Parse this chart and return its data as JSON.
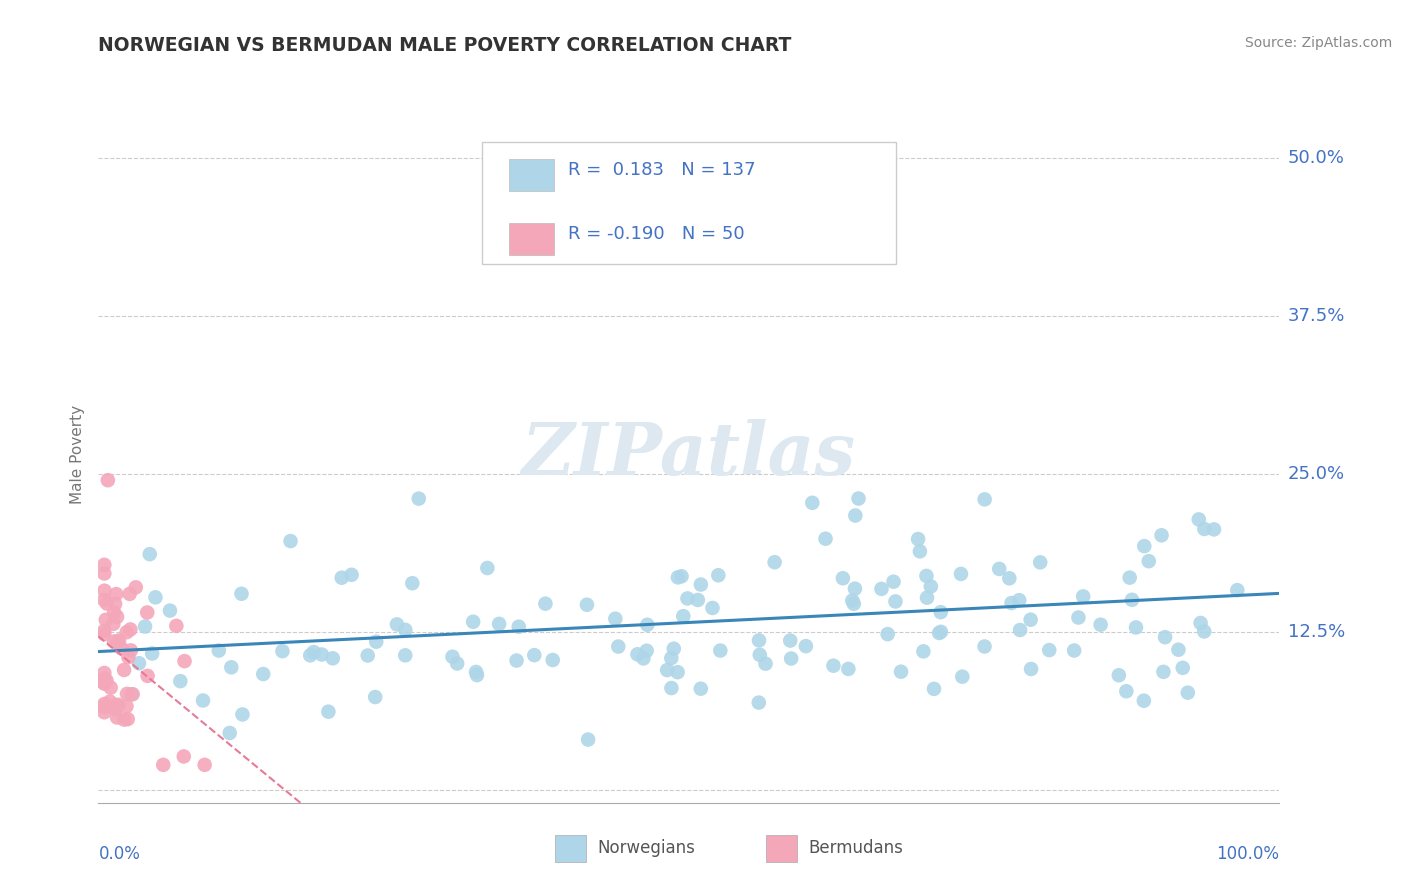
{
  "title": "NORWEGIAN VS BERMUDAN MALE POVERTY CORRELATION CHART",
  "source": "Source: ZipAtlas.com",
  "ylabel": "Male Poverty",
  "yticks": [
    0.0,
    0.125,
    0.25,
    0.375,
    0.5
  ],
  "ytick_labels": [
    "",
    "12.5%",
    "25.0%",
    "37.5%",
    "50.0%"
  ],
  "xlim": [
    0.0,
    1.0
  ],
  "ylim": [
    -0.01,
    0.54
  ],
  "norwegian_color": "#aed6e8",
  "bermudan_color": "#f4a7b9",
  "regression_norwegian_color": "#3a86b8",
  "regression_bermudan_color": "#e87a97",
  "watermark": "ZIPatlas",
  "title_color": "#333333",
  "source_color": "#888888",
  "axis_label_color": "#4472c4",
  "ylabel_color": "#777777",
  "legend_r1": "R =  0.183",
  "legend_n1": "N = 137",
  "legend_r2": "R = -0.190",
  "legend_n2": "N = 50",
  "legend_color1": "#aed6e8",
  "legend_color2": "#f4a7b9",
  "legend_text_color": "#4472c4",
  "bottom_legend_color": "#555555"
}
